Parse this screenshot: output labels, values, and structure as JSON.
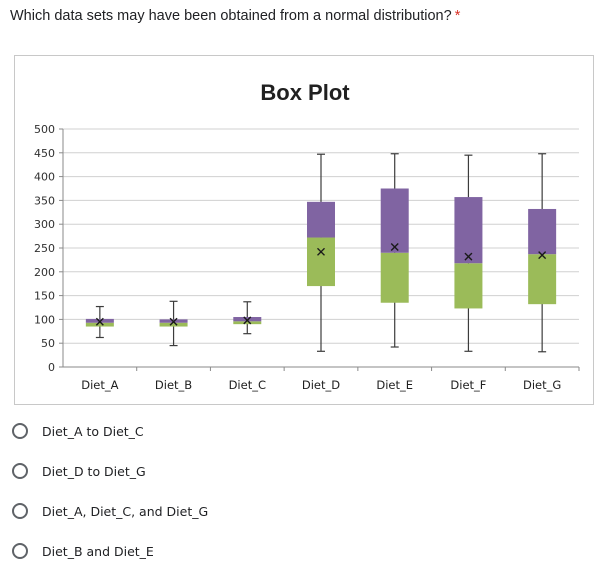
{
  "question": {
    "text": "Which data sets may have been obtained from a normal distribution?",
    "required_marker": "*"
  },
  "colors": {
    "upper_box": "#8064a2",
    "lower_box": "#9bbb59",
    "whisker": "#3c3c3c",
    "gridline": "#d0d0d0",
    "required": "#d93025"
  },
  "chart_data": {
    "type": "box",
    "title": "Box Plot",
    "categories": [
      "Diet_A",
      "Diet_B",
      "Diet_C",
      "Diet_D",
      "Diet_E",
      "Diet_F",
      "Diet_G"
    ],
    "ylim": [
      0,
      500
    ],
    "yticks": [
      "0",
      "50",
      "100",
      "150",
      "200",
      "250",
      "300",
      "350",
      "400",
      "450",
      "500"
    ],
    "grid": true,
    "series": [
      {
        "category": "Diet_A",
        "min": 62,
        "q1": 85,
        "median": 93,
        "q3": 101,
        "max": 127,
        "mean": 95
      },
      {
        "category": "Diet_B",
        "min": 45,
        "q1": 85,
        "median": 93,
        "q3": 100,
        "max": 138,
        "mean": 95
      },
      {
        "category": "Diet_C",
        "min": 70,
        "q1": 90,
        "median": 96,
        "q3": 105,
        "max": 137,
        "mean": 98
      },
      {
        "category": "Diet_D",
        "min": 33,
        "q1": 170,
        "median": 272,
        "q3": 347,
        "max": 447,
        "mean": 242
      },
      {
        "category": "Diet_E",
        "min": 42,
        "q1": 135,
        "median": 240,
        "q3": 375,
        "max": 448,
        "mean": 252
      },
      {
        "category": "Diet_F",
        "min": 33,
        "q1": 123,
        "median": 218,
        "q3": 357,
        "max": 445,
        "mean": 232
      },
      {
        "category": "Diet_G",
        "min": 32,
        "q1": 132,
        "median": 237,
        "q3": 332,
        "max": 448,
        "mean": 235
      }
    ]
  },
  "options": [
    {
      "label": "Diet_A to Diet_C"
    },
    {
      "label": "Diet_D to Diet_G"
    },
    {
      "label": "Diet_A, Diet_C, and Diet_G"
    },
    {
      "label": "Diet_B and Diet_E"
    }
  ]
}
